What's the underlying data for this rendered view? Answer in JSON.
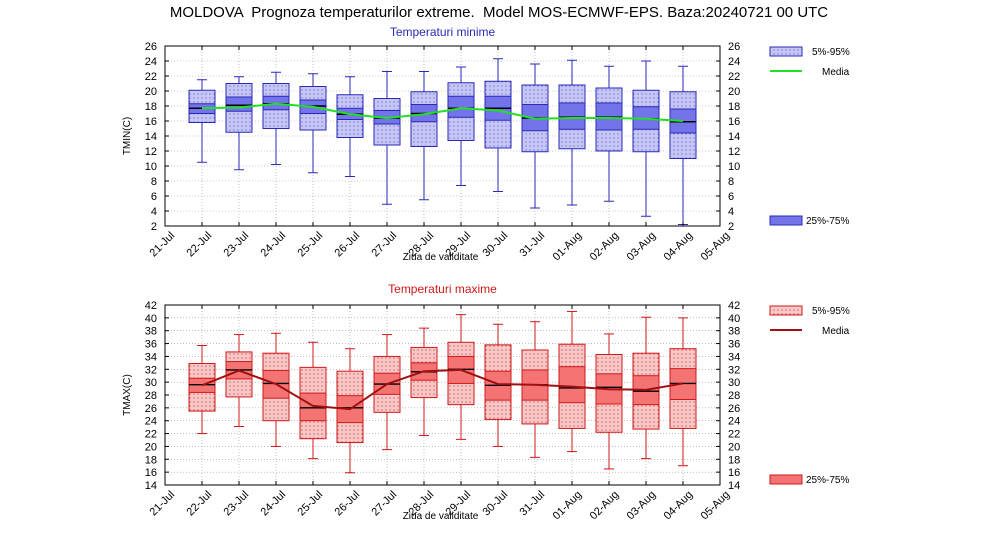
{
  "title": "MOLDOVA  Prognoza temperaturilor extreme.  Model MOS-ECMWF-EPS. Baza:20240721 00 UTC",
  "chart_data": [
    {
      "type": "box",
      "title": "Temperaturi minime",
      "xlabel": "Ziua de validitate",
      "ylabel": "TMIN(C)",
      "ylim": [
        2,
        26
      ],
      "yticks": [
        "2",
        "4",
        "6",
        "8",
        "10",
        "12",
        "14",
        "16",
        "18",
        "20",
        "22",
        "24",
        "26"
      ],
      "categories": [
        "21-Jul",
        "22-Jul",
        "23-Jul",
        "24-Jul",
        "25-Jul",
        "26-Jul",
        "27-Jul",
        "28-Jul",
        "29-Jul",
        "30-Jul",
        "31-Jul",
        "01-Aug",
        "02-Aug",
        "03-Aug",
        "04-Aug",
        "05-Aug"
      ],
      "grid": true,
      "colors": {
        "outer": "#c6c6f4",
        "inner": "#7474ea",
        "edge": "#2a2ab8",
        "mean": "#22e022"
      },
      "legend": {
        "p5_95": "5%-95%",
        "mean": "Media",
        "p25_75": "25%-75%"
      },
      "boxes": [
        {
          "day": "22-Jul",
          "min": 10.5,
          "p5": 15.8,
          "p25": 17.0,
          "median": 17.7,
          "p75": 18.3,
          "p95": 20.1,
          "max": 21.5,
          "mean": 17.7
        },
        {
          "day": "23-Jul",
          "min": 9.5,
          "p5": 14.5,
          "p25": 17.3,
          "median": 18.1,
          "p75": 19.2,
          "p95": 21.0,
          "max": 21.9,
          "mean": 17.8
        },
        {
          "day": "24-Jul",
          "min": 10.2,
          "p5": 15.0,
          "p25": 17.5,
          "median": 18.3,
          "p75": 19.3,
          "p95": 21.0,
          "max": 22.5,
          "mean": 18.3
        },
        {
          "day": "25-Jul",
          "min": 9.1,
          "p5": 14.8,
          "p25": 17.0,
          "median": 18.0,
          "p75": 18.8,
          "p95": 20.6,
          "max": 22.3,
          "mean": 17.9
        },
        {
          "day": "26-Jul",
          "min": 8.6,
          "p5": 13.8,
          "p25": 16.2,
          "median": 16.9,
          "p75": 17.7,
          "p95": 19.5,
          "max": 21.9,
          "mean": 16.9
        },
        {
          "day": "27-Jul",
          "min": 4.9,
          "p5": 12.8,
          "p25": 15.6,
          "median": 16.4,
          "p75": 17.4,
          "p95": 19.0,
          "max": 22.6,
          "mean": 16.4
        },
        {
          "day": "28-Jul",
          "min": 5.5,
          "p5": 12.6,
          "p25": 15.9,
          "median": 17.0,
          "p75": 18.2,
          "p95": 19.9,
          "max": 22.6,
          "mean": 16.9
        },
        {
          "day": "29-Jul",
          "min": 7.4,
          "p5": 13.4,
          "p25": 16.5,
          "median": 17.7,
          "p75": 19.3,
          "p95": 21.1,
          "max": 23.2,
          "mean": 17.7
        },
        {
          "day": "30-Jul",
          "min": 6.6,
          "p5": 12.4,
          "p25": 16.1,
          "median": 17.7,
          "p75": 19.3,
          "p95": 21.3,
          "max": 24.3,
          "mean": 17.4
        },
        {
          "day": "31-Jul",
          "min": 4.4,
          "p5": 11.9,
          "p25": 14.7,
          "median": 16.4,
          "p75": 18.2,
          "p95": 20.8,
          "max": 23.6,
          "mean": 16.3
        },
        {
          "day": "01-Aug",
          "min": 4.8,
          "p5": 12.3,
          "p25": 14.9,
          "median": 16.5,
          "p75": 18.4,
          "p95": 20.8,
          "max": 24.1,
          "mean": 16.4
        },
        {
          "day": "02-Aug",
          "min": 5.3,
          "p5": 12.0,
          "p25": 14.8,
          "median": 16.5,
          "p75": 18.4,
          "p95": 20.4,
          "max": 23.3,
          "mean": 16.4
        },
        {
          "day": "03-Aug",
          "min": 3.3,
          "p5": 11.9,
          "p25": 14.9,
          "median": 16.3,
          "p75": 17.9,
          "p95": 20.1,
          "max": 24.0,
          "mean": 16.3
        },
        {
          "day": "04-Aug",
          "min": 2.2,
          "p5": 11.0,
          "p25": 14.4,
          "median": 15.9,
          "p75": 17.6,
          "p95": 19.9,
          "max": 23.3,
          "mean": 16.0
        }
      ]
    },
    {
      "type": "box",
      "title": "Temperaturi maxime",
      "xlabel": "Ziua de validitate",
      "ylabel": "TMAX(C)",
      "ylim": [
        14,
        42
      ],
      "yticks": [
        "14",
        "16",
        "18",
        "20",
        "22",
        "24",
        "26",
        "28",
        "30",
        "32",
        "34",
        "36",
        "38",
        "40",
        "42"
      ],
      "categories": [
        "21-Jul",
        "22-Jul",
        "23-Jul",
        "24-Jul",
        "25-Jul",
        "26-Jul",
        "27-Jul",
        "28-Jul",
        "29-Jul",
        "30-Jul",
        "31-Jul",
        "01-Aug",
        "02-Aug",
        "03-Aug",
        "04-Aug",
        "05-Aug"
      ],
      "grid": true,
      "colors": {
        "outer": "#f8c8c8",
        "inner": "#f47474",
        "edge": "#d01818",
        "mean": "#a01010"
      },
      "legend": {
        "p5_95": "5%-95%",
        "mean": "Media",
        "p25_75": "25%-75%"
      },
      "boxes": [
        {
          "day": "22-Jul",
          "min": 22.0,
          "p5": 25.5,
          "p25": 28.4,
          "median": 29.6,
          "p75": 30.6,
          "p95": 32.9,
          "max": 35.7,
          "mean": 29.5
        },
        {
          "day": "23-Jul",
          "min": 23.1,
          "p5": 27.7,
          "p25": 30.5,
          "median": 31.9,
          "p75": 33.2,
          "p95": 34.7,
          "max": 37.4,
          "mean": 31.8
        },
        {
          "day": "24-Jul",
          "min": 20.0,
          "p5": 24.0,
          "p25": 27.5,
          "median": 29.8,
          "p75": 31.8,
          "p95": 34.5,
          "max": 37.6,
          "mean": 29.7
        },
        {
          "day": "25-Jul",
          "min": 18.1,
          "p5": 21.2,
          "p25": 24.0,
          "median": 26.0,
          "p75": 28.3,
          "p95": 32.3,
          "max": 36.2,
          "mean": 26.3
        },
        {
          "day": "26-Jul",
          "min": 15.9,
          "p5": 20.6,
          "p25": 23.7,
          "median": 26.0,
          "p75": 27.9,
          "p95": 31.7,
          "max": 35.2,
          "mean": 25.8
        },
        {
          "day": "27-Jul",
          "min": 19.5,
          "p5": 25.3,
          "p25": 28.1,
          "median": 29.7,
          "p75": 31.4,
          "p95": 34.0,
          "max": 37.4,
          "mean": 29.7
        },
        {
          "day": "28-Jul",
          "min": 21.7,
          "p5": 27.6,
          "p25": 30.3,
          "median": 31.6,
          "p75": 33.0,
          "p95": 35.4,
          "max": 38.4,
          "mean": 31.7
        },
        {
          "day": "29-Jul",
          "min": 21.1,
          "p5": 26.5,
          "p25": 29.8,
          "median": 32.0,
          "p75": 34.0,
          "p95": 36.2,
          "max": 40.5,
          "mean": 31.9
        },
        {
          "day": "30-Jul",
          "min": 20.0,
          "p5": 24.2,
          "p25": 27.2,
          "median": 29.5,
          "p75": 31.7,
          "p95": 35.8,
          "max": 39.0,
          "mean": 29.7
        },
        {
          "day": "31-Jul",
          "min": 18.3,
          "p5": 23.5,
          "p25": 27.2,
          "median": 29.6,
          "p75": 31.9,
          "p95": 35.0,
          "max": 39.4,
          "mean": 29.6
        },
        {
          "day": "01-Aug",
          "min": 19.2,
          "p5": 22.8,
          "p25": 26.8,
          "median": 29.1,
          "p75": 32.4,
          "p95": 35.9,
          "max": 41.0,
          "mean": 29.3
        },
        {
          "day": "02-Aug",
          "min": 16.5,
          "p5": 22.2,
          "p25": 26.6,
          "median": 29.2,
          "p75": 31.3,
          "p95": 34.3,
          "max": 37.5,
          "mean": 28.9
        },
        {
          "day": "03-Aug",
          "min": 18.1,
          "p5": 22.7,
          "p25": 26.5,
          "median": 28.6,
          "p75": 31.0,
          "p95": 34.5,
          "max": 40.1,
          "mean": 28.8
        },
        {
          "day": "04-Aug",
          "min": 17.0,
          "p5": 22.8,
          "p25": 27.3,
          "median": 29.8,
          "p75": 32.1,
          "p95": 35.2,
          "max": 40.0,
          "mean": 29.8
        }
      ]
    }
  ]
}
